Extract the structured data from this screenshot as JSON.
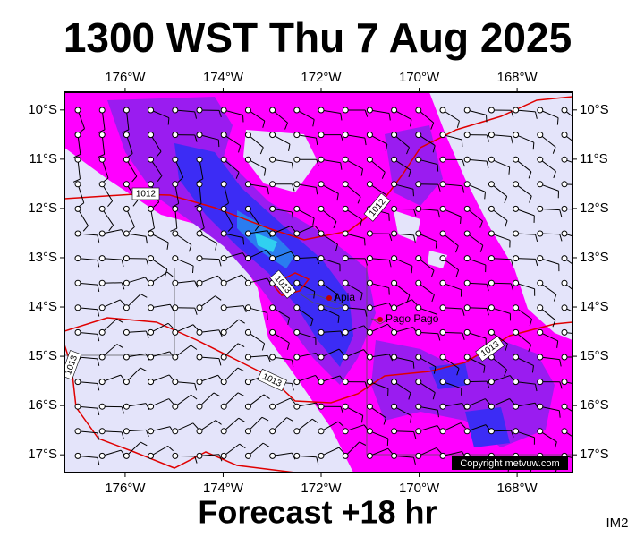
{
  "header": {
    "title": "1300 WST Thu 7 Aug 2025"
  },
  "map": {
    "lon_range": [
      -177.24,
      -166.87
    ],
    "lat_range": [
      -17.36,
      -9.64
    ],
    "lon_ticks": [
      {
        "value": -176,
        "label": "176°W"
      },
      {
        "value": -174,
        "label": "174°W"
      },
      {
        "value": -172,
        "label": "172°W"
      },
      {
        "value": -170,
        "label": "170°W"
      },
      {
        "value": -168,
        "label": "168°W"
      }
    ],
    "lat_ticks": [
      {
        "value": -10,
        "label": "10°S"
      },
      {
        "value": -11,
        "label": "11°S"
      },
      {
        "value": -12,
        "label": "12°S"
      },
      {
        "value": -13,
        "label": "13°S"
      },
      {
        "value": -14,
        "label": "14°S"
      },
      {
        "value": -15,
        "label": "15°S"
      },
      {
        "value": -16,
        "label": "16°S"
      },
      {
        "value": -17,
        "label": "17°S"
      }
    ],
    "places": [
      "Apia",
      "Pago Pago"
    ],
    "isobar_labels": [
      "1012",
      "1012",
      "1013",
      "1013",
      "1013",
      "1013"
    ],
    "copyright": "Copyright metvuw.com"
  },
  "footer": {
    "forecast": "Forecast +18 hr",
    "code": "IM2"
  }
}
